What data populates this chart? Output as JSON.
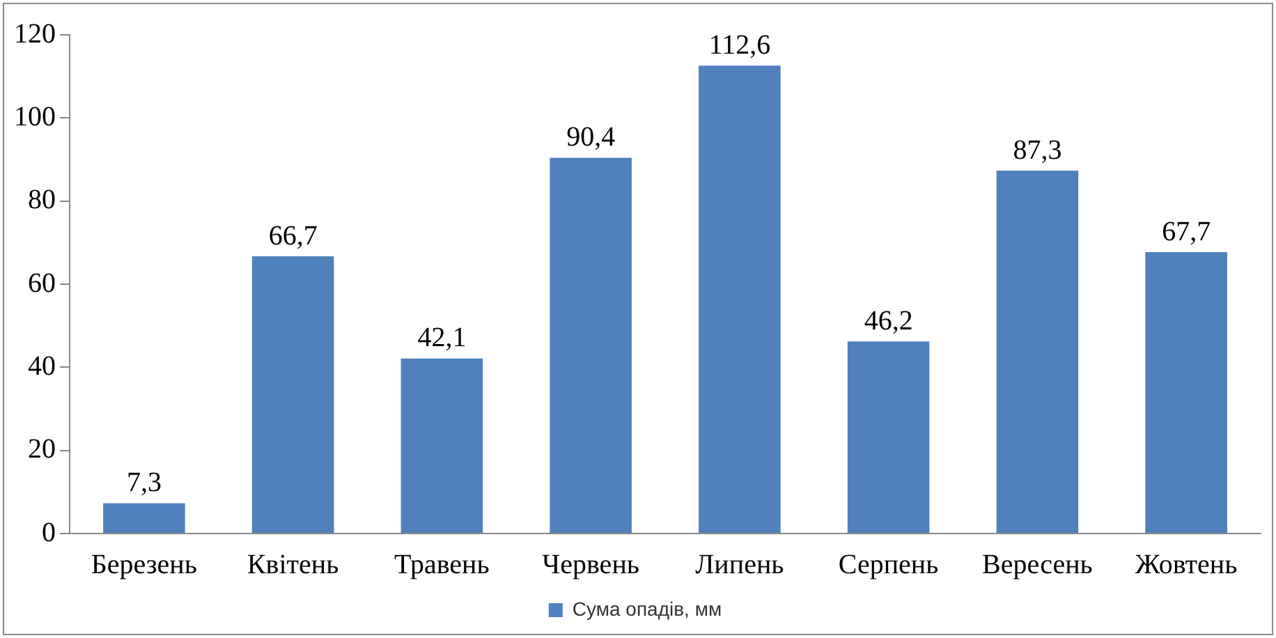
{
  "chart_data": {
    "type": "bar",
    "categories": [
      "Березень",
      "Квітень",
      "Травень",
      "Червень",
      "Липень",
      "Серпень",
      "Вересень",
      "Жовтень"
    ],
    "series": [
      {
        "name": "Сума опадів, мм",
        "color": "#4f81bd",
        "values": [
          7.3,
          66.7,
          42.1,
          90.4,
          112.6,
          46.2,
          87.3,
          67.7
        ],
        "value_labels": [
          "7,3",
          "66,7",
          "42,1",
          "90,4",
          "112,6",
          "46,2",
          "87,3",
          "67,7"
        ]
      }
    ],
    "ylim": [
      0,
      120
    ],
    "yticks": [
      0,
      20,
      40,
      60,
      80,
      100,
      120
    ],
    "grid": false,
    "legend": "bottom"
  }
}
